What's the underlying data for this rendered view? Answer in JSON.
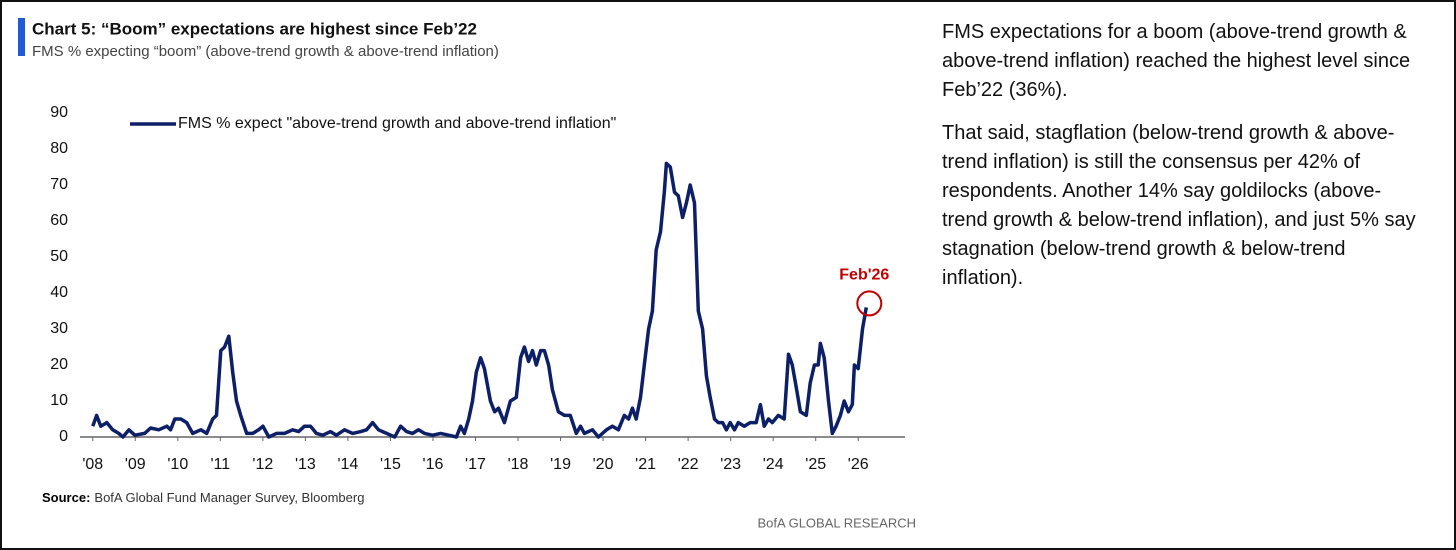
{
  "chart_data": {
    "type": "line",
    "title": "Chart 5: “Boom” expectations are highest since Feb’22",
    "subtitle": "FMS % expecting “boom” (above-trend growth & above-trend inflation)",
    "annotation": "Feb'26",
    "annotation_color": "#c00000",
    "xlim": [
      2007.7,
      2027.1
    ],
    "ylim": [
      0,
      90
    ],
    "yticks": [
      0,
      10,
      20,
      30,
      40,
      50,
      60,
      70,
      80,
      90
    ],
    "xticks": [
      {
        "value": 2008,
        "label": "'08"
      },
      {
        "value": 2009,
        "label": "'09"
      },
      {
        "value": 2010,
        "label": "'10"
      },
      {
        "value": 2011,
        "label": "'11"
      },
      {
        "value": 2012,
        "label": "'12"
      },
      {
        "value": 2013,
        "label": "'13"
      },
      {
        "value": 2014,
        "label": "'14"
      },
      {
        "value": 2015,
        "label": "'15"
      },
      {
        "value": 2016,
        "label": "'16"
      },
      {
        "value": 2017,
        "label": "'17"
      },
      {
        "value": 2018,
        "label": "'18"
      },
      {
        "value": 2019,
        "label": "'19"
      },
      {
        "value": 2020,
        "label": "'20"
      },
      {
        "value": 2021,
        "label": "'21"
      },
      {
        "value": 2022,
        "label": "'22"
      },
      {
        "value": 2023,
        "label": "'23"
      },
      {
        "value": 2024,
        "label": "'24"
      },
      {
        "value": 2025,
        "label": "'25"
      },
      {
        "value": 2026,
        "label": "'26"
      }
    ],
    "grid": false,
    "x": [
      2008.0,
      2008.09,
      2008.19,
      2008.33,
      2008.47,
      2008.61,
      2008.71,
      2008.85,
      2008.99,
      2009.22,
      2009.36,
      2009.55,
      2009.74,
      2009.83,
      2009.93,
      2010.07,
      2010.21,
      2010.35,
      2010.54,
      2010.68,
      2010.82,
      2010.91,
      2011.01,
      2011.1,
      2011.2,
      2011.29,
      2011.38,
      2011.48,
      2011.62,
      2011.76,
      2011.9,
      2012.0,
      2012.14,
      2012.32,
      2012.51,
      2012.7,
      2012.84,
      2012.98,
      2013.12,
      2013.26,
      2013.41,
      2013.59,
      2013.73,
      2013.92,
      2014.11,
      2014.3,
      2014.44,
      2014.58,
      2014.72,
      2014.91,
      2015.1,
      2015.24,
      2015.38,
      2015.52,
      2015.66,
      2015.8,
      2015.99,
      2016.18,
      2016.37,
      2016.55,
      2016.65,
      2016.74,
      2016.84,
      2016.93,
      2017.02,
      2017.12,
      2017.21,
      2017.35,
      2017.45,
      2017.54,
      2017.68,
      2017.82,
      2017.96,
      2018.06,
      2018.15,
      2018.25,
      2018.34,
      2018.43,
      2018.53,
      2018.62,
      2018.72,
      2018.81,
      2018.95,
      2019.09,
      2019.23,
      2019.37,
      2019.47,
      2019.56,
      2019.75,
      2019.89,
      2020.08,
      2020.22,
      2020.36,
      2020.5,
      2020.6,
      2020.69,
      2020.78,
      2020.88,
      2020.97,
      2021.07,
      2021.16,
      2021.25,
      2021.35,
      2021.44,
      2021.49,
      2021.58,
      2021.68,
      2021.77,
      2021.87,
      2021.96,
      2022.05,
      2022.15,
      2022.24,
      2022.34,
      2022.43,
      2022.52,
      2022.62,
      2022.71,
      2022.81,
      2022.9,
      2022.99,
      2023.09,
      2023.18,
      2023.32,
      2023.46,
      2023.6,
      2023.7,
      2023.79,
      2023.89,
      2023.98,
      2024.12,
      2024.26,
      2024.36,
      2024.45,
      2024.54,
      2024.64,
      2024.78,
      2024.87,
      2024.97,
      2025.06,
      2025.11,
      2025.2,
      2025.3,
      2025.39,
      2025.48,
      2025.58,
      2025.67,
      2025.77,
      2025.86,
      2025.91,
      2026.0,
      2026.1,
      2026.19
    ],
    "series": [
      {
        "name": "FMS % expect \"above-trend growth and above-trend inflation\"",
        "color": "#0d1f66",
        "values": [
          3,
          6,
          3,
          4,
          2,
          1,
          0,
          2,
          0.5,
          1,
          2.5,
          2,
          3,
          2,
          5,
          5,
          4,
          1,
          2,
          1,
          5,
          6,
          24,
          25,
          28,
          18,
          10,
          6,
          1,
          1,
          2,
          3,
          0,
          1,
          1,
          2,
          1.5,
          3,
          3,
          1,
          0.5,
          1.5,
          0.5,
          2,
          1,
          1.5,
          2,
          4,
          2,
          1,
          0,
          3,
          1.5,
          1,
          2,
          1,
          0.5,
          1,
          0.5,
          0,
          3,
          1,
          5,
          10,
          18,
          22,
          19,
          10,
          7,
          8,
          4,
          10,
          11,
          22,
          25,
          21,
          24,
          20,
          24,
          24,
          20,
          13,
          7,
          6,
          6,
          1,
          3,
          1,
          2,
          0,
          2,
          3,
          2,
          6,
          5,
          8,
          5,
          11,
          20,
          30,
          35,
          52,
          57,
          68,
          76,
          75,
          68,
          67,
          61,
          65,
          70,
          65,
          35,
          30,
          17,
          11,
          5,
          4,
          4,
          2,
          4,
          2,
          4,
          3,
          4,
          4,
          9,
          3,
          5,
          4,
          6,
          5,
          23,
          20,
          14,
          7,
          6,
          15,
          20,
          20,
          26,
          22,
          10,
          1,
          3,
          6,
          10,
          7,
          9,
          20,
          19,
          30,
          36
        ]
      }
    ]
  },
  "source": {
    "label": "Source:",
    "text": "BofA Global Fund Manager Survey, Bloomberg"
  },
  "footer": "BofA GLOBAL RESEARCH",
  "commentary": [
    "FMS expectations for a boom (above-trend growth & above-trend inflation) reached the highest level since Feb’22 (36%).",
    "That said, stagflation (below-trend growth & above-trend inflation) is still the consensus per 42% of respondents. Another 14% say goldilocks (above-trend growth & below-trend inflation), and just 5% say stagnation (below-trend growth & below-trend inflation)."
  ]
}
